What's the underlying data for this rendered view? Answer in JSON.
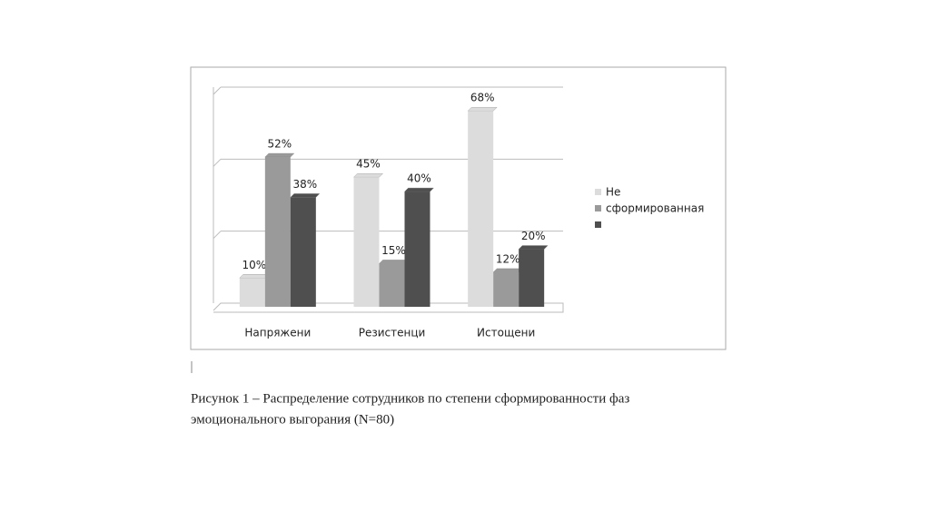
{
  "chart_data": {
    "type": "bar",
    "categories": [
      "Напряжени",
      "Резистенци",
      "Истощени"
    ],
    "series": [
      {
        "name": "Не",
        "color": "#dcdcdc",
        "values": [
          10,
          45,
          68
        ],
        "value_labels": [
          "10%",
          "45%",
          "68%"
        ]
      },
      {
        "name": "сформированная",
        "color": "#9a9a9a",
        "values": [
          52,
          15,
          12
        ],
        "value_labels": [
          "52%",
          "15%",
          "12%"
        ]
      },
      {
        "color": "#4f4f4f",
        "values": [
          38,
          40,
          20
        ],
        "value_labels": [
          "38%",
          "40%",
          "20%"
        ]
      }
    ],
    "ylim": [
      0,
      75
    ],
    "yticks": [
      0,
      25,
      50,
      75
    ],
    "grid": true,
    "legend": "right",
    "caption": [
      "Рисунок 1 – Распределение сотрудников по степени сформированности фаз",
      "эмоционального выгорания (N=80)"
    ]
  }
}
